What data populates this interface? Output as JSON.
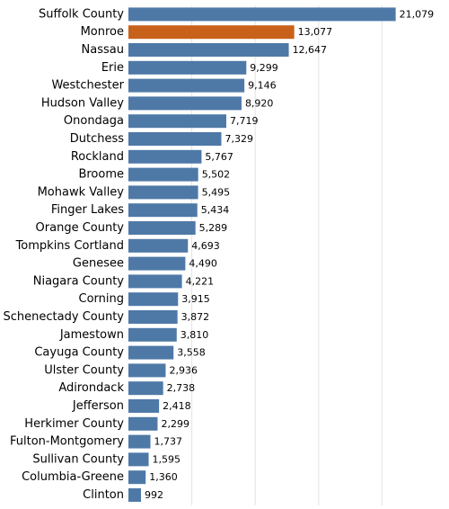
{
  "chart_data": {
    "type": "bar",
    "orientation": "horizontal",
    "categories": [
      "Suffolk County",
      "Monroe",
      "Nassau",
      "Erie",
      "Westchester",
      "Hudson Valley",
      "Onondaga",
      "Dutchess",
      "Rockland",
      "Broome",
      "Mohawk Valley",
      "Finger Lakes",
      "Orange County",
      "Tompkins Cortland",
      "Genesee",
      "Niagara County",
      "Corning",
      "Schenectady County",
      "Jamestown",
      "Cayuga County",
      "Ulster County",
      "Adirondack",
      "Jefferson",
      "Herkimer County",
      "Fulton-Montgomery",
      "Sullivan County",
      "Columbia-Greene",
      "Clinton"
    ],
    "values": [
      21079,
      13077,
      12647,
      9299,
      9146,
      8920,
      7719,
      7329,
      5767,
      5502,
      5495,
      5434,
      5289,
      4693,
      4490,
      4221,
      3915,
      3872,
      3810,
      3558,
      2936,
      2738,
      2418,
      2299,
      1737,
      1595,
      1360,
      992
    ],
    "value_labels": [
      "21,079",
      "13,077",
      "12,647",
      "9,299",
      "9,146",
      "8,920",
      "7,719",
      "7,329",
      "5,767",
      "5,502",
      "5,495",
      "5,434",
      "5,289",
      "4,693",
      "4,490",
      "4,221",
      "3,915",
      "3,872",
      "3,810",
      "3,558",
      "2,936",
      "2,738",
      "2,418",
      "2,299",
      "1,737",
      "1,595",
      "1,360",
      "992"
    ],
    "highlight_category": "Monroe",
    "colors": {
      "bar": "#4e79a7",
      "highlight": "#c8611a",
      "grid": "#e3e3e3"
    },
    "xlim": [
      0,
      25000
    ],
    "grid_step": 5000,
    "grid": true,
    "title": "",
    "xlabel": "",
    "ylabel": ""
  }
}
